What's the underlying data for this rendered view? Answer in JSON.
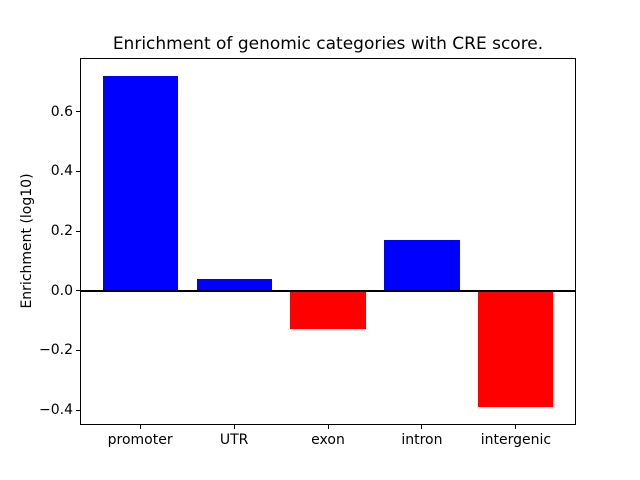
{
  "chart_data": {
    "type": "bar",
    "title": "Enrichment of genomic categories with CRE score.",
    "xlabel": "",
    "ylabel": "Enrichment (log10)",
    "categories": [
      "promoter",
      "UTR",
      "exon",
      "intron",
      "intergenic"
    ],
    "values": [
      0.72,
      0.04,
      -0.13,
      0.17,
      -0.39
    ],
    "bar_colors": [
      "#0000ff",
      "#0000ff",
      "#ff0000",
      "#0000ff",
      "#ff0000"
    ],
    "positive_color": "#0000ff",
    "negative_color": "#ff0000",
    "ylim": [
      -0.45,
      0.78
    ],
    "yticks": [
      {
        "label": "0.6",
        "value": 0.6
      },
      {
        "label": "0.4",
        "value": 0.4
      },
      {
        "label": "0.2",
        "value": 0.2
      },
      {
        "label": "0.0",
        "value": 0.0
      },
      {
        "label": "−0.2",
        "value": -0.2
      },
      {
        "label": "−0.4",
        "value": -0.4
      }
    ],
    "grid": false,
    "zero_line": true,
    "legend": null
  }
}
